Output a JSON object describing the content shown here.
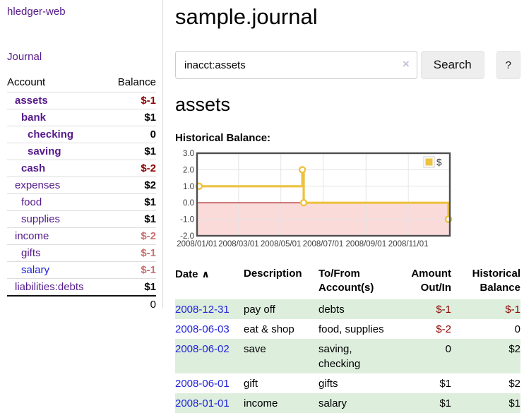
{
  "app": {
    "title": "hledger-web",
    "nav_journal": "Journal"
  },
  "colors": {
    "link_purple": "#551a8b",
    "link_blue": "#2222dd",
    "negative_strong": "#8b0000",
    "negative_soft": "#c9706f",
    "row_stripe_green": "#ddeedd",
    "chart_line_gold": "#edc240",
    "chart_negative_fill": "#fbdada",
    "chart_zero_line": "#a00000",
    "chart_border": "#4f4f4f",
    "chart_grid": "#e4e4e4"
  },
  "sidebar": {
    "col_account": "Account",
    "col_balance": "Balance",
    "accounts": [
      {
        "name": "assets",
        "depth": 1,
        "balance": "$-1",
        "bold": true
      },
      {
        "name": "bank",
        "depth": 2,
        "balance": "$1",
        "bold": true
      },
      {
        "name": "checking",
        "depth": 3,
        "balance": "0",
        "bold": true
      },
      {
        "name": "saving",
        "depth": 3,
        "balance": "$1",
        "bold": true
      },
      {
        "name": "cash",
        "depth": 2,
        "balance": "$-2",
        "bold": true
      },
      {
        "name": "expenses",
        "depth": 1,
        "balance": "$2",
        "bold": false
      },
      {
        "name": "food",
        "depth": 2,
        "balance": "$1",
        "bold": false
      },
      {
        "name": "supplies",
        "depth": 2,
        "balance": "$1",
        "bold": false
      },
      {
        "name": "income",
        "depth": 1,
        "balance": "$-2",
        "bold": false
      },
      {
        "name": "gifts",
        "depth": 2,
        "balance": "$-1",
        "bold": false
      },
      {
        "name": "salary",
        "depth": 2,
        "balance": "$-1",
        "bold": false,
        "link_color": "blue"
      },
      {
        "name": "liabilities:debts",
        "depth": 1,
        "balance": "$1",
        "bold": false
      }
    ],
    "total": "0"
  },
  "header": {
    "title": "sample.journal"
  },
  "search": {
    "value": "inacct:assets",
    "clear_icon": "×",
    "button_label": "Search",
    "help_label": "?"
  },
  "account_page": {
    "heading": "assets",
    "chart_label": "Historical Balance:"
  },
  "chart_data": {
    "type": "line",
    "steps": true,
    "title": "Historical Balance",
    "series": [
      {
        "name": "$",
        "points": [
          [
            "2008-01-01",
            1
          ],
          [
            "2008-06-01",
            2
          ],
          [
            "2008-06-02",
            2
          ],
          [
            "2008-06-03",
            0
          ],
          [
            "2008-12-31",
            -1
          ]
        ]
      }
    ],
    "ylim": [
      -2,
      3
    ],
    "yticks": [
      "3.0",
      "2.0",
      "1.0",
      "0.0",
      "-1.0",
      "-2.0"
    ],
    "xticks": [
      "2008/01/01",
      "2008/03/01",
      "2008/05/01",
      "2008/07/01",
      "2008/09/01",
      "2008/11/01"
    ],
    "x_start": "2008-01-01",
    "x_end": "2008-12-31",
    "grid": true,
    "legend_position": "top-right",
    "negative_region_shaded": true
  },
  "register": {
    "columns": [
      {
        "label": "Date",
        "align": "left",
        "sort_icon": "∧"
      },
      {
        "label": "Description",
        "align": "left"
      },
      {
        "label": "To/From Account(s)",
        "align": "left"
      },
      {
        "label": "Amount Out/In",
        "align": "right"
      },
      {
        "label": "Historical Balance",
        "align": "right"
      }
    ],
    "rows": [
      {
        "date": "2008-12-31",
        "description": "pay off",
        "accounts": "debts",
        "amount": "$-1",
        "balance": "$-1"
      },
      {
        "date": "2008-06-03",
        "description": "eat & shop",
        "accounts": "food, supplies",
        "amount": "$-2",
        "balance": "0"
      },
      {
        "date": "2008-06-02",
        "description": "save",
        "accounts": "saving, checking",
        "amount": "0",
        "balance": "$2"
      },
      {
        "date": "2008-06-01",
        "description": "gift",
        "accounts": "gifts",
        "amount": "$1",
        "balance": "$2"
      },
      {
        "date": "2008-01-01",
        "description": "income",
        "accounts": "salary",
        "amount": "$1",
        "balance": "$1"
      }
    ]
  }
}
